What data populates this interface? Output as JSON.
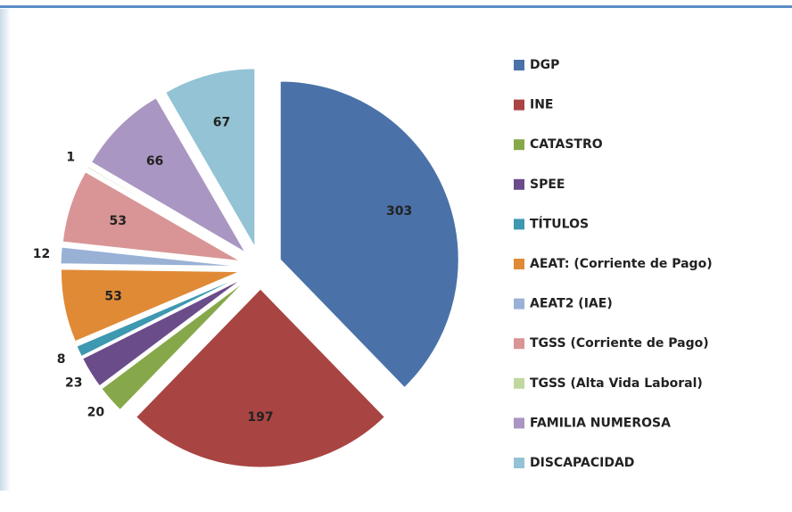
{
  "chart_data": {
    "type": "pie",
    "categories": [
      "DGP",
      "INE",
      "CATASTRO",
      "SPEE",
      "TÍTULOS",
      "AEAT: (Corriente de Pago)",
      "AEAT2 (IAE)",
      "TGSS (Corriente de Pago)",
      "TGSS (Alta Vida Laboral)",
      "FAMILIA NUMEROSA",
      "DISCAPACIDAD"
    ],
    "values": [
      303,
      197,
      20,
      23,
      8,
      53,
      12,
      53,
      1,
      66,
      67
    ],
    "colors": [
      "#4a72a8",
      "#a84442",
      "#86a84a",
      "#6b4c8a",
      "#3d98b0",
      "#e08a36",
      "#9ab1d6",
      "#d99595",
      "#c0d8a0",
      "#a996c2",
      "#93c3d4"
    ],
    "legend": "right"
  }
}
